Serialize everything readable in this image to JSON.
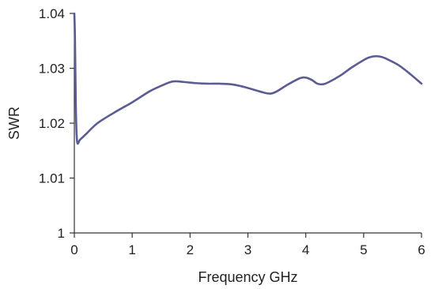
{
  "chart_data": {
    "type": "line",
    "xlabel": "Frequency GHz",
    "ylabel": "SWR",
    "xlim": [
      0,
      6
    ],
    "ylim": [
      1,
      1.04
    ],
    "xticks": [
      0,
      1,
      2,
      3,
      4,
      5,
      6
    ],
    "xtick_labels": [
      "0",
      "1",
      "2",
      "3",
      "4",
      "5",
      "6"
    ],
    "yticks": [
      1,
      1.01,
      1.02,
      1.03,
      1.04
    ],
    "ytick_labels": [
      "1",
      "1.01",
      "1.02",
      "1.03",
      "1.04"
    ],
    "grid": false,
    "line_color": "#5b5c94",
    "series": [
      {
        "x": [
          0.0,
          0.01,
          0.02,
          0.03,
          0.05,
          0.1,
          0.2,
          0.4,
          0.7,
          1.0,
          1.3,
          1.5,
          1.7,
          1.9,
          2.1,
          2.3,
          2.5,
          2.7,
          2.9,
          3.1,
          3.3,
          3.4,
          3.5,
          3.7,
          3.9,
          4.0,
          4.1,
          4.2,
          4.3,
          4.4,
          4.6,
          4.8,
          5.0,
          5.1,
          5.2,
          5.3,
          5.4,
          5.6,
          5.8,
          6.0
        ],
        "y": [
          1.04,
          1.036,
          1.028,
          1.021,
          1.0165,
          1.017,
          1.018,
          1.02,
          1.022,
          1.0238,
          1.0258,
          1.0268,
          1.0276,
          1.0275,
          1.0273,
          1.0272,
          1.0272,
          1.0271,
          1.0267,
          1.0261,
          1.0255,
          1.0254,
          1.0258,
          1.0271,
          1.0282,
          1.0283,
          1.0279,
          1.0272,
          1.0271,
          1.0275,
          1.0287,
          1.0302,
          1.0315,
          1.032,
          1.0322,
          1.0321,
          1.0317,
          1.0306,
          1.029,
          1.0272
        ]
      }
    ]
  }
}
